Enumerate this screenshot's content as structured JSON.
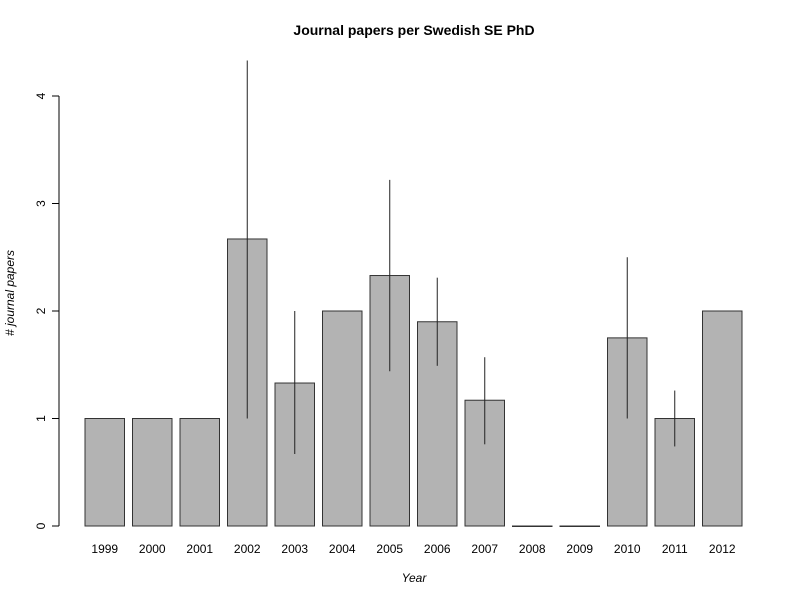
{
  "chart_data": {
    "type": "bar",
    "title": "Journal papers per Swedish SE PhD",
    "xlabel": "Year",
    "ylabel": "# journal papers",
    "categories": [
      "1999",
      "2000",
      "2001",
      "2002",
      "2003",
      "2004",
      "2005",
      "2006",
      "2007",
      "2008",
      "2009",
      "2010",
      "2011",
      "2012"
    ],
    "values": [
      1,
      1,
      1,
      2.67,
      1.33,
      2,
      2.33,
      1.9,
      1.17,
      0,
      0,
      1.75,
      1,
      2
    ],
    "error_low": [
      null,
      null,
      null,
      1.0,
      0.67,
      null,
      1.44,
      1.49,
      0.76,
      null,
      null,
      1.0,
      0.74,
      null
    ],
    "error_high": [
      null,
      null,
      null,
      4.33,
      2.0,
      null,
      3.22,
      2.31,
      1.57,
      null,
      null,
      2.5,
      1.26,
      null
    ],
    "ylim": [
      0,
      4
    ],
    "yticks": [
      "0",
      "1",
      "2",
      "3",
      "4"
    ],
    "grid": false,
    "bar_color": "#b3b3b3",
    "bar_border_color": "#333333",
    "error_color": "#222222"
  }
}
